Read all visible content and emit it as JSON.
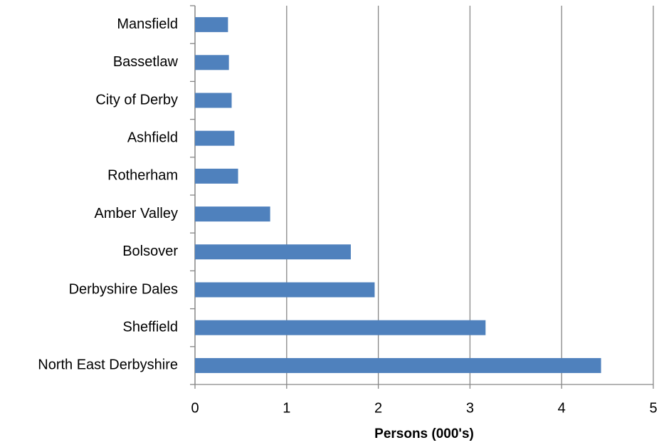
{
  "chart_data": {
    "type": "barh",
    "categories": [
      "Mansfield",
      "Bassetlaw",
      "City of Derby",
      "Ashfield",
      "Rotherham",
      "Amber Valley",
      "Bolsover",
      "Derbyshire Dales",
      "Sheffield",
      "North East Derbyshire"
    ],
    "values": [
      0.36,
      0.37,
      0.4,
      0.43,
      0.47,
      0.82,
      1.7,
      1.96,
      3.17,
      4.43
    ],
    "color": "#4f81bd",
    "xlabel": "Persons (000's)",
    "xlim": [
      0,
      5
    ],
    "xticks": [
      0,
      1,
      2,
      3,
      4,
      5
    ],
    "grid": true
  }
}
